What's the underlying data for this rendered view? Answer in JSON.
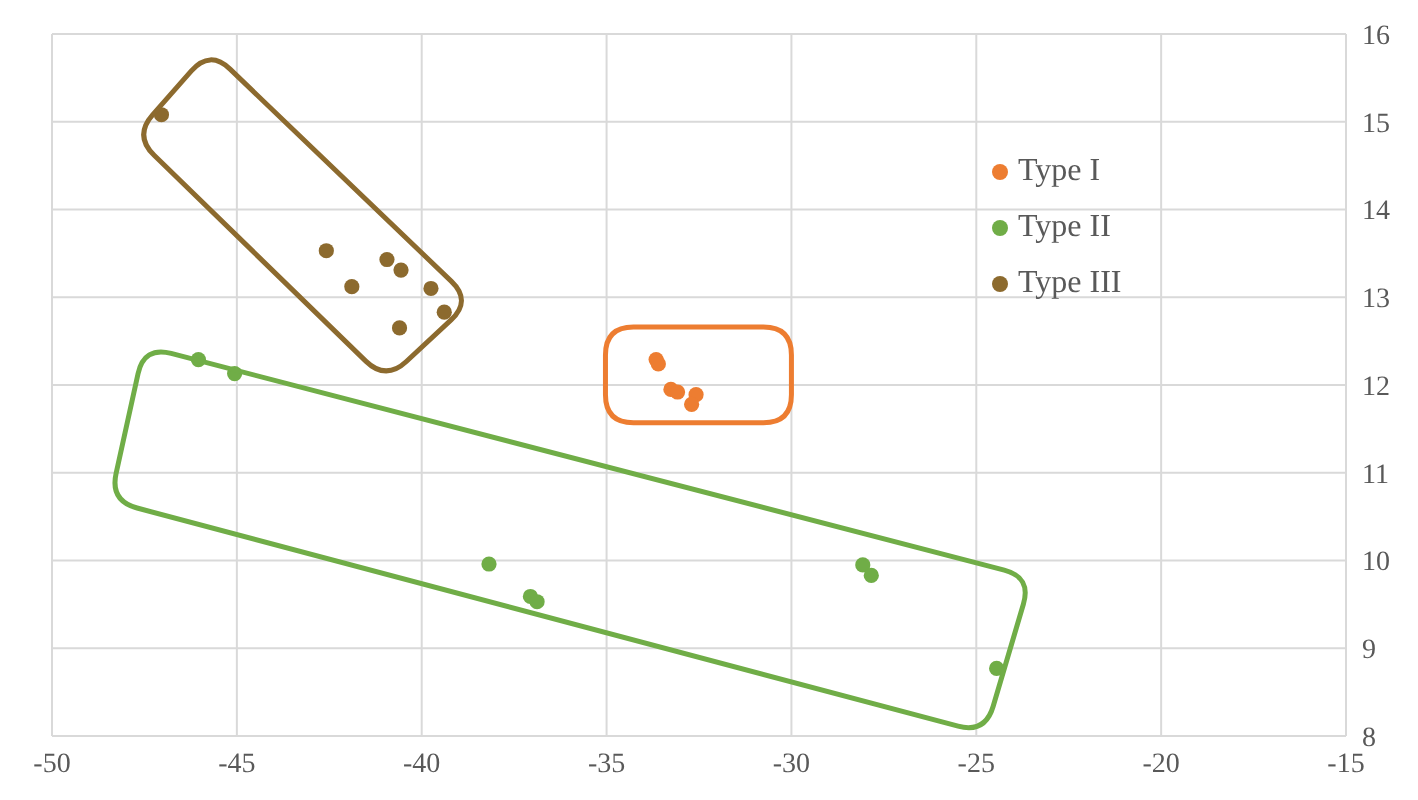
{
  "chart_data": {
    "type": "scatter",
    "series": [
      {
        "name": "Type I",
        "color": "#ed7d31",
        "x": [
          -33.66,
          -33.6,
          -33.26,
          -33.08,
          -32.58,
          -32.7
        ],
        "values": [
          12.29,
          12.24,
          11.95,
          11.92,
          11.89,
          11.78
        ]
      },
      {
        "name": "Type II",
        "color": "#70ad47",
        "x": [
          -46.04,
          -45.06,
          -38.18,
          -37.06,
          -36.88,
          -28.07,
          -27.84,
          -24.45
        ],
        "values": [
          12.29,
          12.13,
          9.96,
          9.59,
          9.53,
          9.95,
          9.83,
          8.77
        ]
      },
      {
        "name": "Type III",
        "color": "#8c6a2e",
        "x": [
          -47.04,
          -42.58,
          -41.89,
          -40.94,
          -40.56,
          -39.75,
          -39.39,
          -40.6
        ],
        "values": [
          15.08,
          13.53,
          13.12,
          13.43,
          13.31,
          13.1,
          12.83,
          12.65
        ]
      }
    ],
    "xlim": [
      -50,
      -15
    ],
    "xticks": [
      -50,
      -45,
      -40,
      -35,
      -30,
      -25,
      -20,
      -15
    ],
    "ylim": [
      8,
      16
    ],
    "yticks": [
      8,
      9,
      10,
      11,
      12,
      13,
      14,
      15,
      16
    ],
    "grid": true,
    "legend": "right",
    "marker": "circle"
  }
}
